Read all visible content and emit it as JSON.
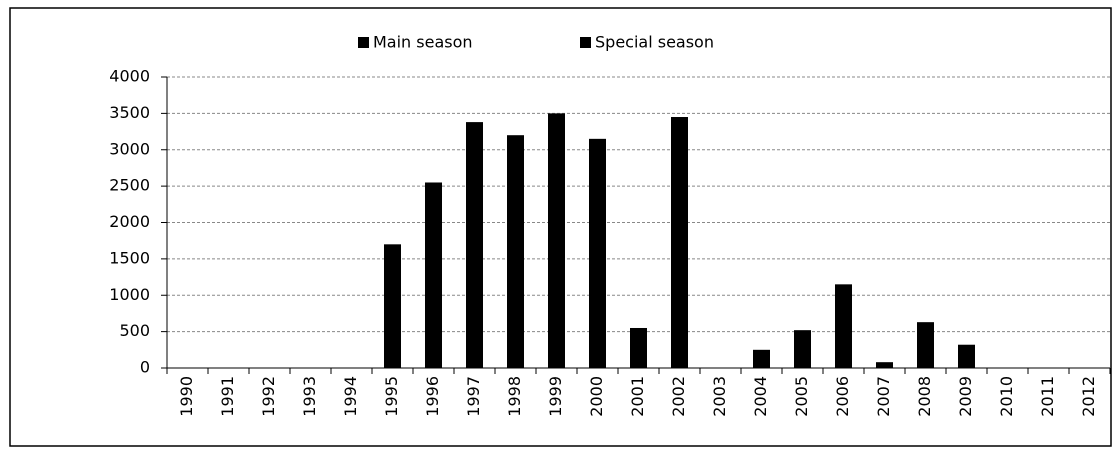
{
  "chart_data": {
    "type": "bar",
    "stacked": true,
    "categories": [
      "1990",
      "1991",
      "1992",
      "1993",
      "1994",
      "1995",
      "1996",
      "1997",
      "1998",
      "1999",
      "2000",
      "2001",
      "2002",
      "2003",
      "2004",
      "2005",
      "2006",
      "2007",
      "2008",
      "2009",
      "2010",
      "2011",
      "2012"
    ],
    "series": [
      {
        "name": "Main season",
        "color": "#000000",
        "values": [
          0,
          0,
          0,
          0,
          0,
          1700,
          2550,
          3380,
          3200,
          3500,
          3150,
          550,
          3450,
          0,
          250,
          520,
          1150,
          80,
          630,
          320,
          0,
          0,
          0
        ]
      },
      {
        "name": "Special season",
        "color": "#000000",
        "values": [
          null,
          null,
          null,
          null,
          null,
          null,
          null,
          null,
          null,
          null,
          null,
          null,
          null,
          null,
          null,
          null,
          null,
          null,
          null,
          null,
          null,
          null,
          null
        ]
      }
    ],
    "ylim": [
      0,
      4000
    ],
    "yticks": [
      0,
      500,
      1000,
      1500,
      2000,
      2500,
      3000,
      3500,
      4000
    ],
    "grid": true,
    "legend": "top"
  }
}
